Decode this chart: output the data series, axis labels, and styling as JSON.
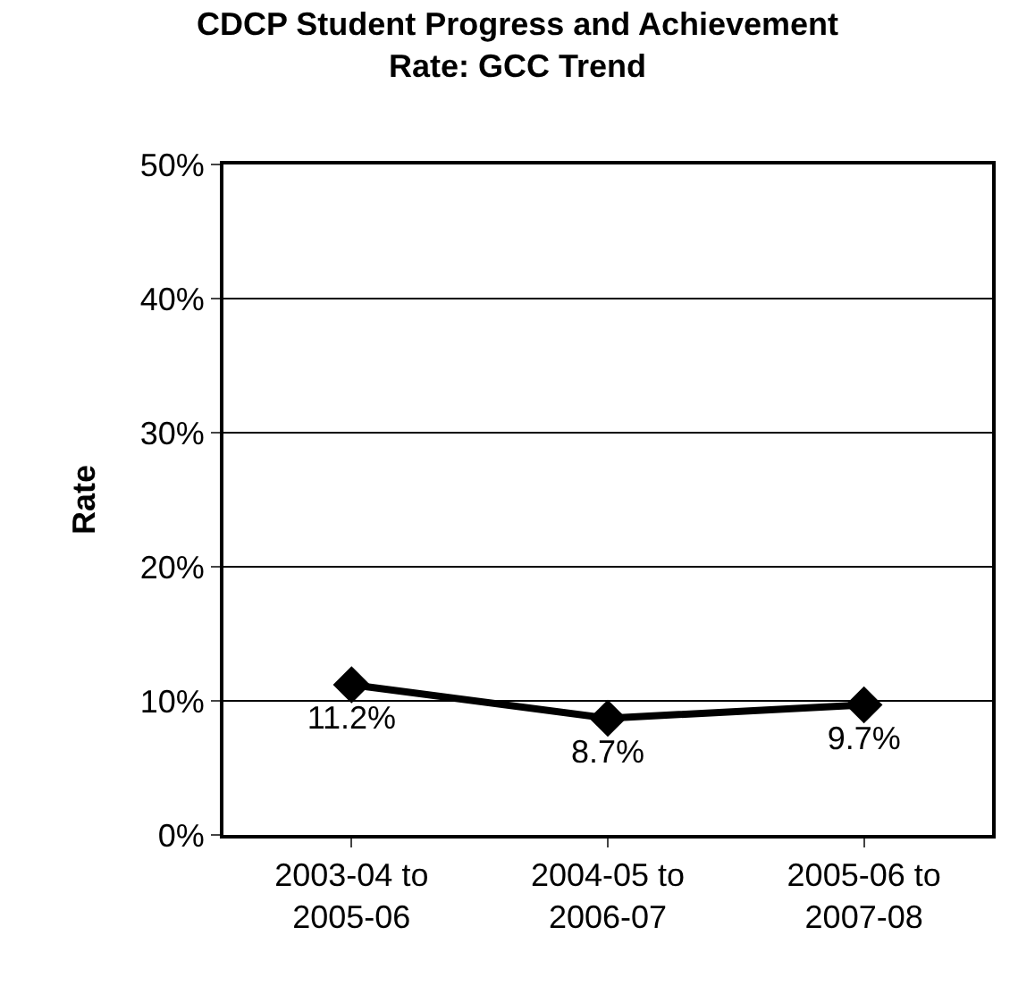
{
  "chart_data": {
    "type": "line",
    "title": "CDCP Student Progress and Achievement\nRate: GCC Trend",
    "ylabel": "Rate",
    "categories": [
      "2003-04 to\n2005-06",
      "2004-05 to\n2006-07",
      "2005-06 to\n2007-08"
    ],
    "series": [
      {
        "color": "#000000",
        "values": [
          11.2,
          8.7,
          9.7
        ],
        "value_labels": [
          "11.2%",
          "8.7%",
          "9.7%"
        ]
      }
    ],
    "ylim": [
      0,
      50
    ],
    "yticks": [
      {
        "value": 0,
        "label": "0%"
      },
      {
        "value": 10,
        "label": "10%"
      },
      {
        "value": 20,
        "label": "20%"
      },
      {
        "value": 30,
        "label": "30%"
      },
      {
        "value": 40,
        "label": "40%"
      },
      {
        "value": 50,
        "label": "50%"
      }
    ],
    "grid": "y",
    "marker": "diamond",
    "line_style": "solid",
    "legend": false
  }
}
